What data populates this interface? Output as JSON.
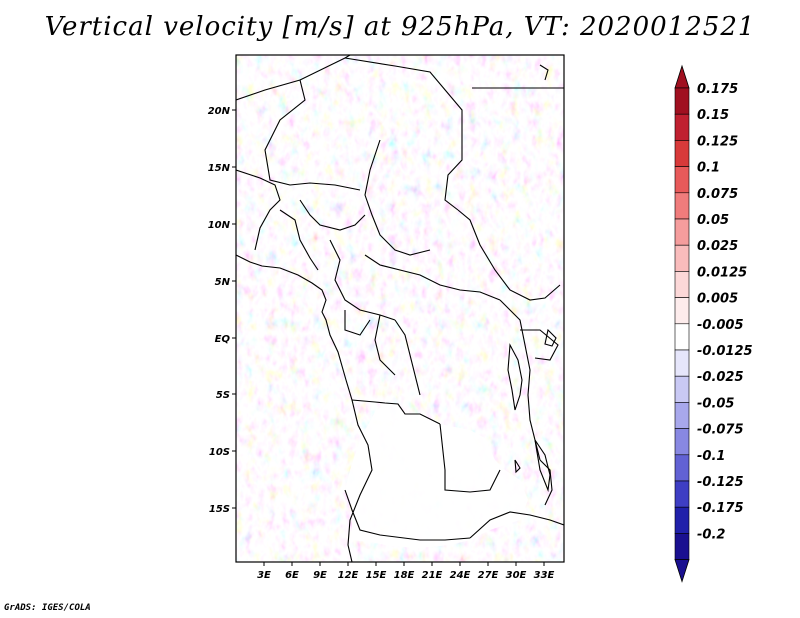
{
  "title": "Vertical velocity [m/s] at 925hPa, VT: 2020012521",
  "credit": "GrADS: IGES/COLA",
  "map": {
    "lat_labels": [
      "20N",
      "15N",
      "10N",
      "5N",
      "EQ",
      "5S",
      "10S",
      "15S"
    ],
    "lon_labels": [
      "3E",
      "6E",
      "9E",
      "12E",
      "15E",
      "18E",
      "21E",
      "24E",
      "27E",
      "30E",
      "33E"
    ],
    "lon_range": [
      0,
      35
    ],
    "lat_range": [
      -20,
      25
    ]
  },
  "colorbar": {
    "labels": [
      "0.175",
      "0.15",
      "0.125",
      "0.1",
      "0.075",
      "0.05",
      "0.025",
      "0.0125",
      "0.005",
      "-0.005",
      "-0.0125",
      "-0.025",
      "-0.05",
      "-0.075",
      "-0.1",
      "-0.125",
      "-0.175",
      "-0.2"
    ],
    "colors": [
      "#a01020",
      "#c02030",
      "#d83a3a",
      "#e85a5a",
      "#f07c7c",
      "#f59d9d",
      "#f9bcbc",
      "#fcd8d8",
      "#fdecec",
      "#ffffff",
      "#e6e6fb",
      "#c9c9f4",
      "#a8a8ec",
      "#8888e2",
      "#6262d4",
      "#3e3ec4",
      "#2020aa",
      "#1a1090"
    ],
    "top_arrow_color": "#a01020",
    "bottom_arrow_color": "#1a1090"
  }
}
